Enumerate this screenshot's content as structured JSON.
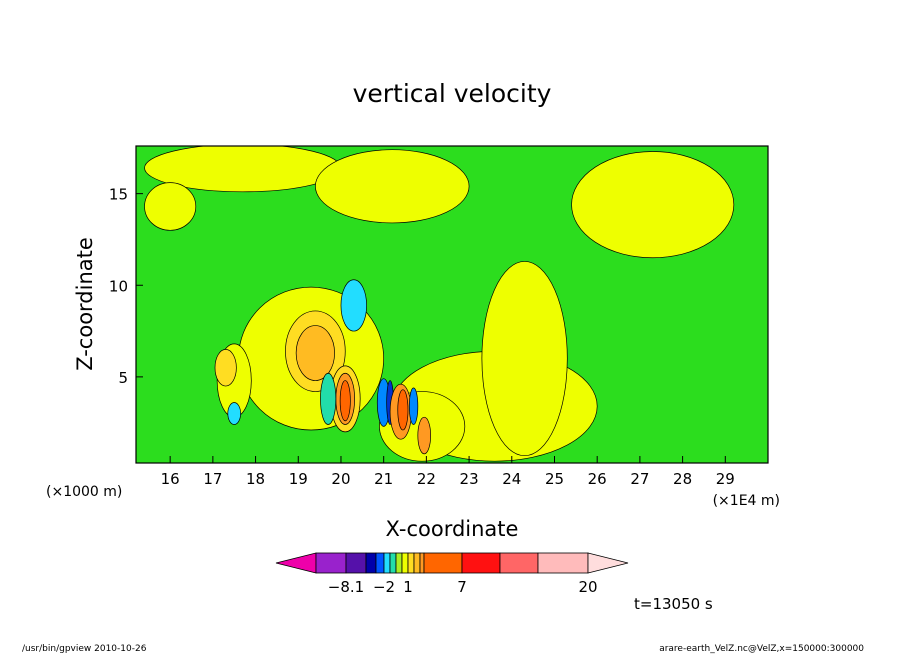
{
  "chart_data": {
    "type": "heatmap",
    "title": "vertical velocity",
    "xlabel": "X-coordinate",
    "ylabel": "Z-coordinate",
    "x_unit_left": "(×1000 m)",
    "x_unit_right": "(×1E4 m)",
    "xlim": [
      15.2,
      30.0
    ],
    "ylim": [
      0.3,
      17.6
    ],
    "x_ticks": [
      16,
      17,
      18,
      19,
      20,
      21,
      22,
      23,
      24,
      25,
      26,
      27,
      28,
      29
    ],
    "y_ticks": [
      5,
      10,
      15
    ],
    "background_level_color": "#2cdd1e",
    "regions": [
      {
        "level": "0..1",
        "color": "#eeff00",
        "center": [
          17.7,
          16.4
        ],
        "radius": [
          2.3,
          1.3
        ]
      },
      {
        "level": "0..1",
        "color": "#eeff00",
        "center": [
          21.2,
          15.4
        ],
        "radius": [
          1.8,
          2.0
        ]
      },
      {
        "level": "0..1",
        "color": "#eeff00",
        "center": [
          16.0,
          14.3
        ],
        "radius": [
          0.6,
          1.3
        ]
      },
      {
        "level": "0..1",
        "color": "#eeff00",
        "center": [
          27.3,
          14.4
        ],
        "radius": [
          1.9,
          2.9
        ]
      },
      {
        "level": "0..1",
        "color": "#eeff00",
        "center": [
          23.6,
          3.4
        ],
        "radius": [
          2.4,
          3.0
        ]
      },
      {
        "level": "0..1",
        "color": "#eeff00",
        "center": [
          24.3,
          6.0
        ],
        "radius": [
          1.0,
          5.3
        ]
      },
      {
        "level": "0..1",
        "color": "#eeff00",
        "center": [
          21.9,
          2.3
        ],
        "radius": [
          1.0,
          1.9
        ]
      },
      {
        "level": "0..1",
        "color": "#eeff00",
        "center": [
          19.3,
          6.0
        ],
        "radius": [
          1.7,
          3.9
        ]
      },
      {
        "level": "0..1",
        "color": "#eeff00",
        "center": [
          17.5,
          4.8
        ],
        "radius": [
          0.4,
          2.0
        ]
      },
      {
        "level": "1..2",
        "color": "#ffdd22",
        "center": [
          19.4,
          6.4
        ],
        "radius": [
          0.7,
          2.2
        ]
      },
      {
        "level": "1..2",
        "color": "#ffdd22",
        "center": [
          20.1,
          3.8
        ],
        "radius": [
          0.35,
          1.8
        ]
      },
      {
        "level": "1..2",
        "color": "#ffdd22",
        "center": [
          17.3,
          5.5
        ],
        "radius": [
          0.25,
          1.0
        ]
      },
      {
        "level": "2..3",
        "color": "#ffbb22",
        "center": [
          19.4,
          6.3
        ],
        "radius": [
          0.45,
          1.5
        ]
      },
      {
        "level": "3..5",
        "color": "#ff9922",
        "center": [
          20.1,
          3.8
        ],
        "radius": [
          0.22,
          1.4
        ]
      },
      {
        "level": "5..7",
        "color": "#ff6600",
        "center": [
          20.1,
          3.7
        ],
        "radius": [
          0.12,
          1.1
        ]
      },
      {
        "level": "-1..0",
        "color": "#22ddaa",
        "center": [
          19.7,
          3.8
        ],
        "radius": [
          0.18,
          1.4
        ]
      },
      {
        "level": "-2..-1",
        "color": "#22ddff",
        "center": [
          20.3,
          8.9
        ],
        "radius": [
          0.3,
          1.4
        ]
      },
      {
        "level": "-2..-1",
        "color": "#22ddff",
        "center": [
          17.5,
          3.0
        ],
        "radius": [
          0.15,
          0.6
        ]
      },
      {
        "level": "-3..-2",
        "color": "#0088ff",
        "center": [
          21.0,
          3.6
        ],
        "radius": [
          0.15,
          1.3
        ]
      },
      {
        "level": "-4..-3",
        "color": "#0033cc",
        "center": [
          21.15,
          3.6
        ],
        "radius": [
          0.08,
          1.2
        ]
      },
      {
        "level": "3..5",
        "color": "#ff9922",
        "center": [
          21.4,
          3.1
        ],
        "radius": [
          0.25,
          1.5
        ]
      },
      {
        "level": "5..7",
        "color": "#ff6600",
        "center": [
          21.45,
          3.2
        ],
        "radius": [
          0.12,
          1.1
        ]
      },
      {
        "level": "-3..-2",
        "color": "#0088ff",
        "center": [
          21.7,
          3.4
        ],
        "radius": [
          0.1,
          1.0
        ]
      },
      {
        "level": "3..5",
        "color": "#ff9922",
        "center": [
          21.95,
          1.8
        ],
        "radius": [
          0.15,
          1.0
        ]
      }
    ],
    "colorbar": {
      "colors": [
        "#ee00aa",
        "#9922cc",
        "#5511aa",
        "#0000aa",
        "#0055ff",
        "#22ddff",
        "#22ddaa",
        "#aaee22",
        "#eeff00",
        "#ffdd22",
        "#ffbb22",
        "#ff9922",
        "#ff6600",
        "#ff1111",
        "#ff6666",
        "#ffbbbb",
        "#ffdddd"
      ],
      "labels": [
        {
          "text": "−8.1",
          "boundary": 1
        },
        {
          "text": "−2",
          "boundary": 4
        },
        {
          "text": "1",
          "boundary": 8
        },
        {
          "text": "7",
          "boundary": 12
        },
        {
          "text": "20",
          "boundary": 15
        }
      ]
    }
  },
  "time_label": "t=13050 s",
  "footer_left": "/usr/bin/gpview   2010-10-26",
  "footer_right": "arare-earth_VelZ.nc@VelZ,x=150000:300000"
}
